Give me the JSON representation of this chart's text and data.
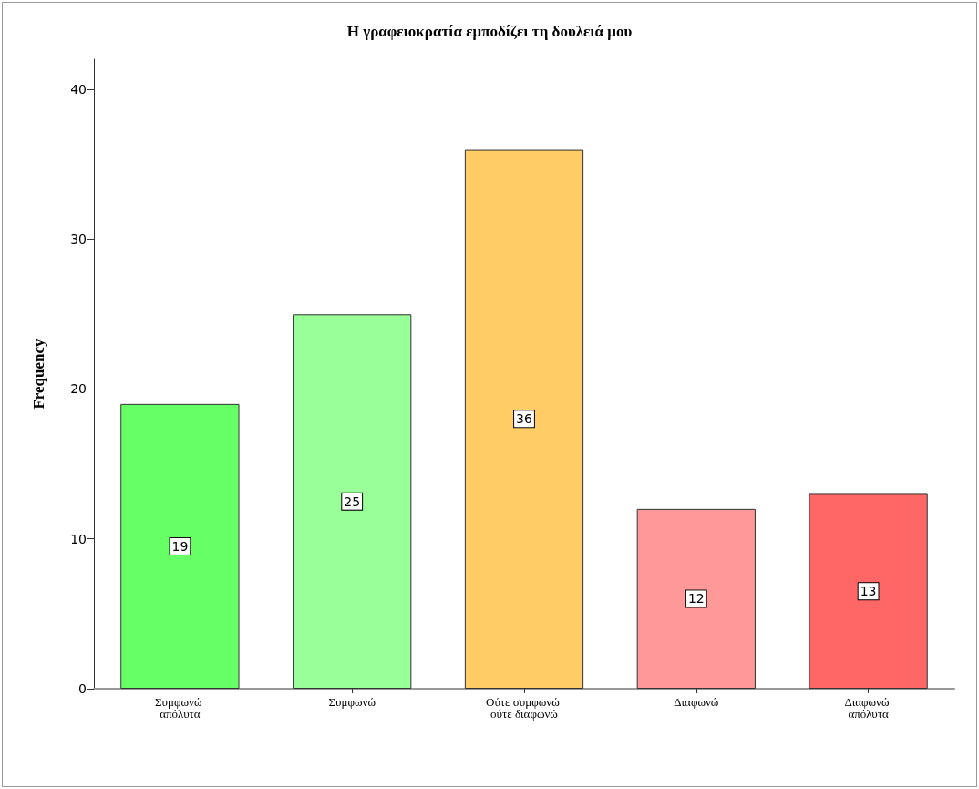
{
  "chart_data": {
    "type": "bar",
    "title": "Η γραφειοκρατία εμποδίζει τη δουλειά μου",
    "ylabel": "Frequency",
    "categories": [
      "Συμφωνώ απόλυτα",
      "Συμφωνώ",
      "Ούτε συμφωνώ ούτε διαφωνώ",
      "Διαφωνώ",
      "Διαφωνώ απόλυτα"
    ],
    "values": [
      19,
      25,
      36,
      12,
      13
    ],
    "colors": [
      "#66ff66",
      "#99ff99",
      "#ffcc66",
      "#ff9999",
      "#ff6666"
    ],
    "ylim": [
      0,
      42
    ],
    "yticks": [
      0,
      10,
      20,
      30,
      40
    ],
    "grid": false,
    "data_labels": true
  }
}
